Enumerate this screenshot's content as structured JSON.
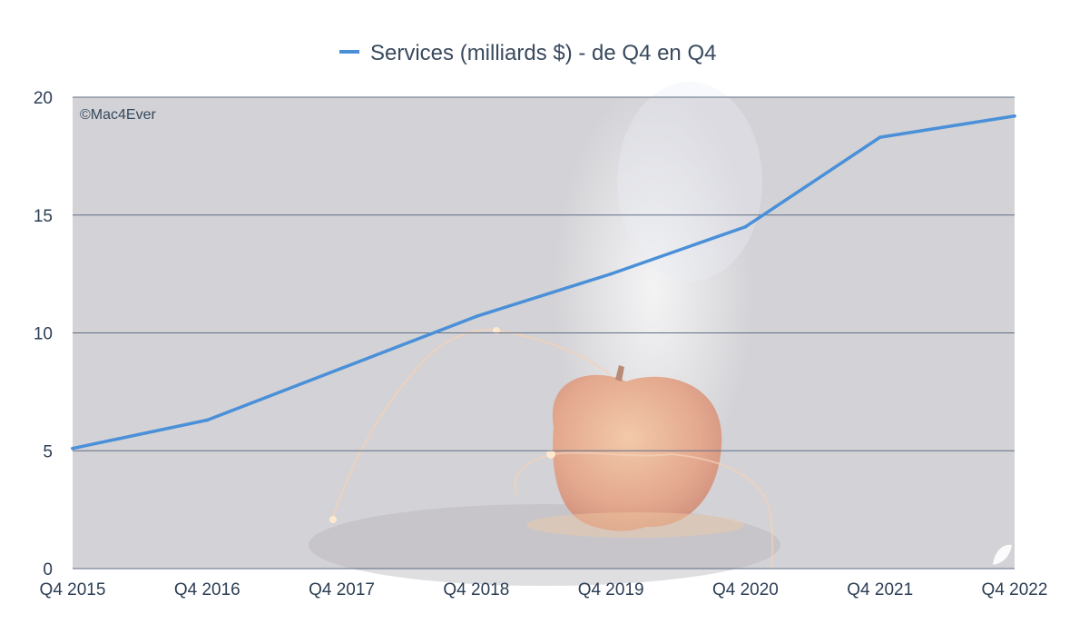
{
  "watermark": "©Mac4Ever",
  "colors": {
    "series": "#4a90d9",
    "plot_background": "#d3d2d6",
    "gridline": "#5f6f85",
    "text": "#2c3e55"
  },
  "chart_data": {
    "type": "line",
    "title": "",
    "xlabel": "",
    "ylabel": "",
    "legend_position": "top",
    "grid": true,
    "categories": [
      "Q4 2015",
      "Q4 2016",
      "Q4 2017",
      "Q4 2018",
      "Q4 2019",
      "Q4 2020",
      "Q4 2021",
      "Q4 2022"
    ],
    "yticks": [
      "0",
      "5",
      "10",
      "15",
      "20"
    ],
    "ylim": [
      0,
      20
    ],
    "series": [
      {
        "name": "Services (milliards $) - de Q4 en Q4",
        "values": [
          5.1,
          6.3,
          8.5,
          10.7,
          12.5,
          14.5,
          18.3,
          19.2
        ]
      }
    ]
  }
}
